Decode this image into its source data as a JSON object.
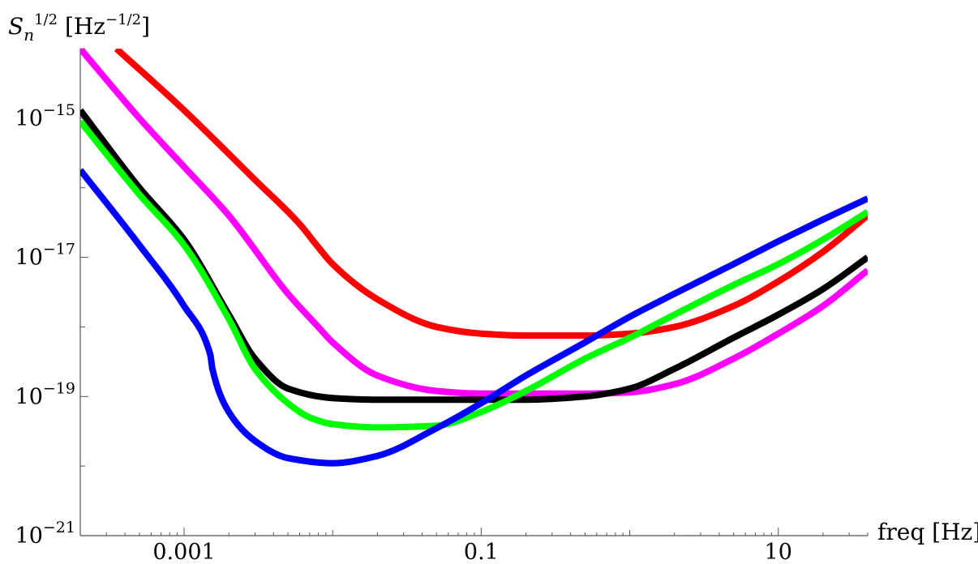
{
  "chart_data": {
    "type": "line",
    "title": "",
    "xscale": "log",
    "yscale": "log",
    "xlim": [
      0.0002,
      40
    ],
    "ylim": [
      1e-21,
      1e-14
    ],
    "ylabel": {
      "base": "S",
      "sub": "n",
      "sup": "1/2",
      "unit_open": " [Hz",
      "unit_sup": "−1/2",
      "unit_close": "]"
    },
    "xlabel": "freq [Hz]",
    "xticks": [
      {
        "value": 0.001,
        "label": "0.001"
      },
      {
        "value": 0.1,
        "label": "0.1"
      },
      {
        "value": 10,
        "label": "10"
      }
    ],
    "yticks": [
      {
        "value": 1e-15,
        "base": "10",
        "exp": "−15"
      },
      {
        "value": 1e-17,
        "base": "10",
        "exp": "−17"
      },
      {
        "value": 1e-19,
        "base": "10",
        "exp": "−19"
      },
      {
        "value": 1e-21,
        "base": "10",
        "exp": "−21"
      }
    ],
    "grid": false,
    "legend": "none",
    "series": [
      {
        "color": "#ff0000",
        "x": [
          0.00035,
          0.001,
          0.003,
          0.006,
          0.008,
          0.01,
          0.02,
          0.05,
          0.1,
          0.2,
          0.5,
          1,
          2,
          5,
          10,
          20,
          40
        ],
        "y": [
          1e-14,
          1.3e-15,
          1.3e-16,
          3e-17,
          1.4e-17,
          8e-18,
          2.5e-18,
          1e-18,
          8e-19,
          7.5e-19,
          7.5e-19,
          8e-19,
          1e-18,
          2e-18,
          4.5e-18,
          1.2e-17,
          4e-17
        ]
      },
      {
        "color": "#ff00ff",
        "x": [
          0.0002,
          0.0005,
          0.001,
          0.002,
          0.005,
          0.008,
          0.01,
          0.02,
          0.05,
          0.1,
          0.2,
          0.5,
          1,
          2,
          5,
          10,
          20,
          40
        ],
        "y": [
          1e-14,
          1e-15,
          2e-16,
          4e-17,
          3e-18,
          1e-18,
          6e-19,
          2e-19,
          1.2e-19,
          1.1e-19,
          1.1e-19,
          1.1e-19,
          1.15e-19,
          1.5e-19,
          3.5e-19,
          8e-19,
          2e-18,
          6.5e-18
        ]
      },
      {
        "color": "#000000",
        "x": [
          0.0002,
          0.0005,
          0.001,
          0.002,
          0.003,
          0.005,
          0.01,
          0.02,
          0.05,
          0.1,
          0.2,
          0.5,
          1,
          2,
          5,
          10,
          20,
          40
        ],
        "y": [
          1.3e-15,
          1e-16,
          1.8e-17,
          1.5e-18,
          3.5e-19,
          1.3e-19,
          9.5e-20,
          9e-20,
          9e-20,
          9e-20,
          9e-20,
          1e-19,
          1.3e-19,
          2.5e-19,
          7e-19,
          1.5e-18,
          3.5e-18,
          1e-17
        ]
      },
      {
        "color": "#00ff00",
        "x": [
          0.0002,
          0.0005,
          0.001,
          0.002,
          0.003,
          0.005,
          0.007,
          0.01,
          0.02,
          0.05,
          0.1,
          0.2,
          0.5,
          1,
          2,
          5,
          10,
          20,
          40
        ],
        "y": [
          9e-16,
          8e-17,
          1.5e-17,
          1.3e-18,
          2.5e-19,
          8e-20,
          5e-20,
          4e-20,
          3.6e-20,
          3.8e-20,
          6e-20,
          1.2e-19,
          3.5e-19,
          7e-19,
          1.5e-18,
          4e-18,
          8e-18,
          1.8e-17,
          4.5e-17
        ]
      },
      {
        "color": "#0000ff",
        "x": [
          0.0002,
          0.0005,
          0.001,
          0.0015,
          0.00155,
          0.002,
          0.003,
          0.005,
          0.01,
          0.02,
          0.05,
          0.1,
          0.2,
          0.5,
          1,
          2,
          5,
          10,
          20,
          40
        ],
        "y": [
          1.8e-16,
          1.5e-17,
          2e-18,
          4e-19,
          2.5e-19,
          6e-20,
          2.3e-20,
          1.3e-20,
          1.1e-20,
          1.4e-20,
          3.5e-20,
          8e-20,
          2e-19,
          6e-19,
          1.4e-18,
          3e-18,
          8e-18,
          1.7e-17,
          3.5e-17,
          7e-17
        ]
      }
    ]
  }
}
